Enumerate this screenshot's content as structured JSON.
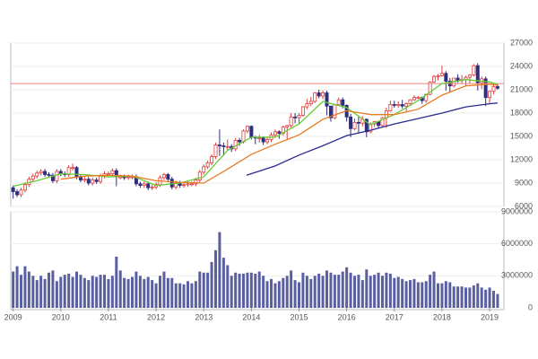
{
  "chart_data": [
    {
      "type": "candlestick",
      "x": [
        2009,
        2009.083,
        2009.167,
        2009.25,
        2009.333,
        2009.417,
        2009.5,
        2009.583,
        2009.667,
        2009.75,
        2009.833,
        2009.917,
        2010,
        2010.083,
        2010.167,
        2010.25,
        2010.333,
        2010.417,
        2010.5,
        2010.583,
        2010.667,
        2010.75,
        2010.833,
        2010.917,
        2011,
        2011.083,
        2011.167,
        2011.25,
        2011.333,
        2011.417,
        2011.5,
        2011.583,
        2011.667,
        2011.75,
        2011.833,
        2011.917,
        2012,
        2012.083,
        2012.167,
        2012.25,
        2012.333,
        2012.417,
        2012.5,
        2012.583,
        2012.667,
        2012.75,
        2012.833,
        2012.917,
        2013,
        2013.083,
        2013.167,
        2013.25,
        2013.333,
        2013.417,
        2013.5,
        2013.583,
        2013.667,
        2013.75,
        2013.833,
        2013.917,
        2014,
        2014.083,
        2014.167,
        2014.25,
        2014.333,
        2014.417,
        2014.5,
        2014.583,
        2014.667,
        2014.75,
        2014.833,
        2014.917,
        2015,
        2015.083,
        2015.167,
        2015.25,
        2015.333,
        2015.417,
        2015.5,
        2015.583,
        2015.667,
        2015.75,
        2015.833,
        2015.917,
        2016,
        2016.083,
        2016.167,
        2016.25,
        2016.333,
        2016.417,
        2016.5,
        2016.583,
        2016.667,
        2016.75,
        2016.833,
        2016.917,
        2017,
        2017.083,
        2017.167,
        2017.25,
        2017.333,
        2017.417,
        2017.5,
        2017.583,
        2017.667,
        2017.75,
        2017.833,
        2017.917,
        2018,
        2018.083,
        2018.167,
        2018.25,
        2018.333,
        2018.417,
        2018.5,
        2018.583,
        2018.667,
        2018.75,
        2018.833,
        2018.917,
        2019,
        2019.083,
        2019.167
      ],
      "open": [
        8400,
        7900,
        7500,
        8100,
        8800,
        9500,
        9900,
        10300,
        10500,
        10100,
        10000,
        9300,
        10500,
        10200,
        10100,
        11000,
        11000,
        9800,
        9400,
        9500,
        9000,
        9400,
        9200,
        9900,
        10200,
        10200,
        10600,
        9800,
        9800,
        9700,
        9800,
        9800,
        8900,
        8700,
        8900,
        8400,
        8500,
        8800,
        9700,
        10100,
        9500,
        8500,
        9000,
        8700,
        8800,
        8900,
        8900,
        9400,
        10400,
        11100,
        11600,
        12400,
        13900,
        13800,
        13700,
        13700,
        13400,
        14500,
        14300,
        15700,
        16300,
        14900,
        14800,
        14800,
        14300,
        14600,
        15200,
        15600,
        15400,
        16200,
        16400,
        17500,
        17400,
        17700,
        18800,
        19200,
        19500,
        20600,
        20200,
        20600,
        18900,
        17400,
        19100,
        19700,
        19000,
        17500,
        16000,
        16800,
        16700,
        17200,
        15600,
        16600,
        16900,
        16400,
        17400,
        18300,
        19100,
        19000,
        19100,
        18900,
        19200,
        19700,
        20000,
        20000,
        19600,
        20400,
        22000,
        22700,
        22800,
        23100,
        22100,
        21500,
        22500,
        22200,
        22300,
        22600,
        22900,
        24100,
        21900,
        22400,
        20000,
        20800,
        21400
      ],
      "high": [
        8700,
        8200,
        8400,
        9100,
        9800,
        10200,
        10600,
        10800,
        10800,
        10400,
        10300,
        10800,
        10800,
        10500,
        11300,
        11500,
        11200,
        10100,
        9800,
        9800,
        9700,
        9700,
        10200,
        10500,
        10500,
        10900,
        10900,
        10100,
        10100,
        10100,
        10100,
        10100,
        9200,
        9200,
        9200,
        8800,
        9100,
        10000,
        10300,
        10300,
        9800,
        9300,
        9300,
        9100,
        9200,
        9200,
        9700,
        10700,
        11400,
        11900,
        12700,
        14200,
        15900,
        14200,
        14600,
        14000,
        14800,
        14800,
        15900,
        16400,
        16400,
        15100,
        15200,
        15000,
        14900,
        15500,
        15900,
        15800,
        16400,
        16500,
        18000,
        18000,
        18000,
        18900,
        19800,
        20100,
        20700,
        21000,
        20900,
        20900,
        18900,
        19200,
        20000,
        20000,
        19100,
        17900,
        17300,
        17600,
        17600,
        17300,
        16800,
        17000,
        17000,
        17500,
        18700,
        19600,
        19600,
        19500,
        19700,
        19400,
        19800,
        20300,
        20200,
        20100,
        20500,
        22100,
        22900,
        23000,
        24100,
        23400,
        22500,
        22500,
        23000,
        22900,
        22800,
        23000,
        24300,
        24400,
        22700,
        22700,
        20900,
        21600,
        21700
      ],
      "low": [
        7000,
        7200,
        7200,
        7800,
        8500,
        9200,
        9600,
        10000,
        9800,
        9700,
        9000,
        9000,
        9900,
        9800,
        9800,
        10600,
        9500,
        9100,
        9100,
        8700,
        8700,
        8900,
        8900,
        9600,
        9900,
        9900,
        8600,
        9500,
        9400,
        9400,
        9500,
        8600,
        8400,
        8400,
        8100,
        8100,
        8200,
        8500,
        9400,
        9200,
        8200,
        8200,
        8400,
        8400,
        8500,
        8600,
        8600,
        9100,
        10100,
        10800,
        11300,
        12100,
        12500,
        12500,
        13200,
        13000,
        13100,
        13800,
        14100,
        15400,
        14600,
        14000,
        14200,
        13900,
        14000,
        14300,
        14900,
        14700,
        15100,
        14500,
        16100,
        16700,
        16600,
        17500,
        18500,
        18900,
        19300,
        19900,
        19800,
        17700,
        16900,
        17200,
        19000,
        18600,
        16900,
        14900,
        15800,
        15500,
        16300,
        14900,
        15400,
        16200,
        16000,
        16300,
        16100,
        18200,
        18700,
        18700,
        18600,
        18200,
        19000,
        19600,
        19800,
        19200,
        19300,
        20300,
        21900,
        22200,
        22700,
        20900,
        20600,
        21300,
        21900,
        21800,
        21500,
        21800,
        22700,
        20900,
        21100,
        18900,
        19200,
        20400,
        21000
      ],
      "close": [
        7900,
        7500,
        8100,
        8800,
        9500,
        9900,
        10300,
        10500,
        10100,
        10000,
        9300,
        10500,
        10200,
        10100,
        11000,
        11000,
        9800,
        9400,
        9500,
        9000,
        9400,
        9200,
        9900,
        10200,
        10200,
        10600,
        9800,
        9800,
        9700,
        9800,
        9800,
        8900,
        8700,
        8900,
        8400,
        8500,
        8800,
        9700,
        10100,
        9500,
        8500,
        9000,
        8700,
        8800,
        8900,
        8900,
        9400,
        10400,
        11100,
        11600,
        12400,
        13900,
        13800,
        13700,
        13700,
        13400,
        14500,
        14300,
        15700,
        16300,
        14900,
        14800,
        14800,
        14300,
        14600,
        15200,
        15600,
        15400,
        16200,
        16400,
        17500,
        17400,
        17700,
        18800,
        19200,
        19500,
        20600,
        20200,
        20600,
        18900,
        17400,
        19100,
        19700,
        19000,
        17500,
        16000,
        16800,
        16700,
        17200,
        15600,
        16600,
        16900,
        16400,
        17400,
        18300,
        19100,
        19000,
        19100,
        18900,
        19200,
        19700,
        20000,
        20000,
        19600,
        20400,
        22000,
        22700,
        22800,
        23100,
        22100,
        21500,
        22500,
        22200,
        22300,
        22600,
        22900,
        24100,
        21900,
        22400,
        20000,
        20800,
        21400,
        21200
      ],
      "up_color": "#e03c3c",
      "down_color": "#2e2e80",
      "lines": [
        {
          "color": "#66cc33",
          "x": [
            2009,
            2009.5,
            2010,
            2010.5,
            2011,
            2011.5,
            2012,
            2012.5,
            2013,
            2013.5,
            2014,
            2014.5,
            2015,
            2015.5,
            2016,
            2016.5,
            2017,
            2017.5,
            2018,
            2018.5,
            2019,
            2019.167
          ],
          "values": [
            8600,
            9300,
            10200,
            10100,
            9800,
            9900,
            8700,
            9000,
            9800,
            13200,
            14900,
            14900,
            16600,
            19500,
            18700,
            16500,
            17800,
            19600,
            21800,
            22300,
            22000,
            21700
          ]
        },
        {
          "color": "#e87a20",
          "x": [
            2010,
            2010.5,
            2011,
            2011.5,
            2012,
            2012.5,
            2013,
            2013.5,
            2014,
            2014.5,
            2015,
            2015.5,
            2016,
            2016.5,
            2017,
            2017.5,
            2018,
            2018.5,
            2019,
            2019.167
          ],
          "values": [
            9500,
            9900,
            10000,
            9900,
            9300,
            9100,
            9000,
            10800,
            12700,
            14000,
            15200,
            17200,
            18300,
            17800,
            17800,
            18500,
            20300,
            21500,
            21700,
            21600
          ]
        },
        {
          "color": "#2a2a90",
          "x": [
            2013.9,
            2014.5,
            2015,
            2015.5,
            2016,
            2016.5,
            2017,
            2017.5,
            2018,
            2018.5,
            2019,
            2019.167
          ],
          "values": [
            10000,
            11200,
            12600,
            13800,
            15100,
            15800,
            16600,
            17300,
            18000,
            18800,
            19200,
            19300
          ]
        }
      ],
      "hline": 21800,
      "hline_color": "#f08080",
      "xlim": [
        2008.95,
        2019.3
      ],
      "ylim": [
        6000,
        27000
      ],
      "yticks": [
        6000,
        9000,
        12000,
        15000,
        18000,
        21000,
        24000,
        27000
      ],
      "grid": true
    },
    {
      "type": "bar",
      "x": [
        2009,
        2009.083,
        2009.167,
        2009.25,
        2009.333,
        2009.417,
        2009.5,
        2009.583,
        2009.667,
        2009.75,
        2009.833,
        2009.917,
        2010,
        2010.083,
        2010.167,
        2010.25,
        2010.333,
        2010.417,
        2010.5,
        2010.583,
        2010.667,
        2010.75,
        2010.833,
        2010.917,
        2011,
        2011.083,
        2011.167,
        2011.25,
        2011.333,
        2011.417,
        2011.5,
        2011.583,
        2011.667,
        2011.75,
        2011.833,
        2011.917,
        2012,
        2012.083,
        2012.167,
        2012.25,
        2012.333,
        2012.417,
        2012.5,
        2012.583,
        2012.667,
        2012.75,
        2012.833,
        2012.917,
        2013,
        2013.083,
        2013.167,
        2013.25,
        2013.333,
        2013.417,
        2013.5,
        2013.583,
        2013.667,
        2013.75,
        2013.833,
        2013.917,
        2014,
        2014.083,
        2014.167,
        2014.25,
        2014.333,
        2014.417,
        2014.5,
        2014.583,
        2014.667,
        2014.75,
        2014.833,
        2014.917,
        2015,
        2015.083,
        2015.167,
        2015.25,
        2015.333,
        2015.417,
        2015.5,
        2015.583,
        2015.667,
        2015.75,
        2015.833,
        2015.917,
        2016,
        2016.083,
        2016.167,
        2016.25,
        2016.333,
        2016.417,
        2016.5,
        2016.583,
        2016.667,
        2016.75,
        2016.833,
        2016.917,
        2017,
        2017.083,
        2017.167,
        2017.25,
        2017.333,
        2017.417,
        2017.5,
        2017.583,
        2017.667,
        2017.75,
        2017.833,
        2017.917,
        2018,
        2018.083,
        2018.167,
        2018.25,
        2018.333,
        2018.417,
        2018.5,
        2018.583,
        2018.667,
        2018.75,
        2018.833,
        2018.917,
        2019,
        2019.083,
        2019.167
      ],
      "values": [
        3400000,
        3900000,
        3100000,
        3900000,
        3400000,
        3000000,
        2600000,
        3000000,
        2700000,
        3300000,
        3500000,
        2500000,
        2900000,
        3100000,
        3200000,
        2900000,
        3400000,
        3100000,
        2800000,
        2600000,
        3000000,
        2900000,
        3100000,
        3100000,
        2700000,
        3000000,
        4800000,
        3500000,
        2800000,
        2700000,
        2900000,
        3400000,
        3000000,
        2700000,
        2900000,
        2600000,
        2300000,
        3000000,
        3400000,
        2800000,
        2800000,
        2300000,
        2300000,
        2200000,
        2500000,
        2300000,
        2500000,
        3400000,
        3300000,
        3300000,
        4300000,
        5400000,
        7100000,
        4700000,
        4000000,
        3000000,
        3300000,
        3200000,
        3200000,
        3300000,
        3300000,
        3200000,
        3400000,
        3000000,
        2500000,
        2700000,
        2300000,
        2500000,
        2800000,
        3000000,
        3500000,
        2600000,
        2400000,
        3300000,
        3000000,
        2700000,
        3000000,
        3200000,
        3000000,
        3500000,
        3300000,
        3100000,
        3100000,
        3400000,
        3800000,
        3300000,
        3000000,
        3100000,
        2600000,
        3600000,
        3000000,
        3100000,
        3300000,
        3000000,
        3300000,
        3200000,
        2800000,
        2900000,
        2700000,
        2500000,
        2600000,
        2700000,
        2400000,
        2400000,
        2500000,
        3100000,
        3400000,
        2300000,
        2300000,
        2500000,
        2400000,
        2000000,
        2000000,
        2000000,
        1900000,
        1900000,
        2100000,
        2300000,
        1900000,
        1700000,
        1900000,
        1600000,
        1300000
      ],
      "color": "#5a5fa0",
      "xlim": [
        2008.95,
        2019.3
      ],
      "ylim": [
        0,
        9000000
      ],
      "yticks": [
        0,
        3000000,
        6000000,
        9000000
      ],
      "xticks": [
        2009,
        2010,
        2011,
        2012,
        2013,
        2014,
        2015,
        2016,
        2017,
        2018,
        2019
      ],
      "grid": true
    }
  ]
}
